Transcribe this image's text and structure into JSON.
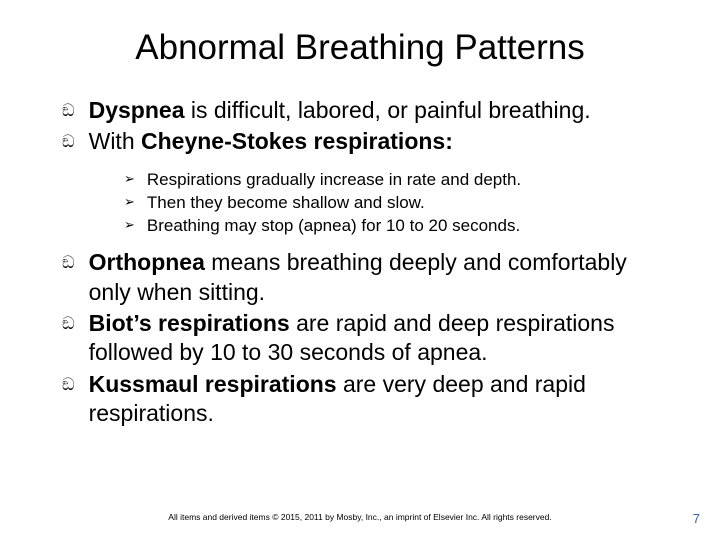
{
  "title": "Abnormal Breathing Patterns",
  "colors": {
    "background": "#ffffff",
    "text": "#000000",
    "page_num": "#3a5fa0"
  },
  "typography": {
    "title_fontsize": 35,
    "body_fontsize": 23,
    "sub_fontsize": 17,
    "footer_fontsize": 8.5
  },
  "bullets_l1_marker": "ඞ",
  "bullets_l2_marker": "➢",
  "items": [
    {
      "level": 1,
      "bold_prefix": "Dyspnea",
      "rest": " is difficult, labored, or painful breathing."
    },
    {
      "level": 1,
      "plain_prefix": "With ",
      "bold_mid": "Cheyne-Stokes respirations:",
      "rest": ""
    },
    {
      "level": 2,
      "text": "Respirations gradually increase in rate and depth."
    },
    {
      "level": 2,
      "text": "Then they become shallow and slow."
    },
    {
      "level": 2,
      "text": "Breathing may stop (apnea) for 10 to 20 seconds."
    },
    {
      "level": 1,
      "bold_prefix": "Orthopnea",
      "rest": " means breathing deeply and comfortably only when sitting."
    },
    {
      "level": 1,
      "bold_prefix": "Biot’s respirations",
      "rest": " are rapid and deep respirations followed by 10 to 30 seconds of apnea."
    },
    {
      "level": 1,
      "bold_prefix": "Kussmaul respirations",
      "rest": " are very deep and rapid respirations."
    }
  ],
  "footer": "All items and derived items © 2015, 2011 by Mosby, Inc., an imprint of Elsevier Inc. All rights reserved.",
  "page_number": "7"
}
